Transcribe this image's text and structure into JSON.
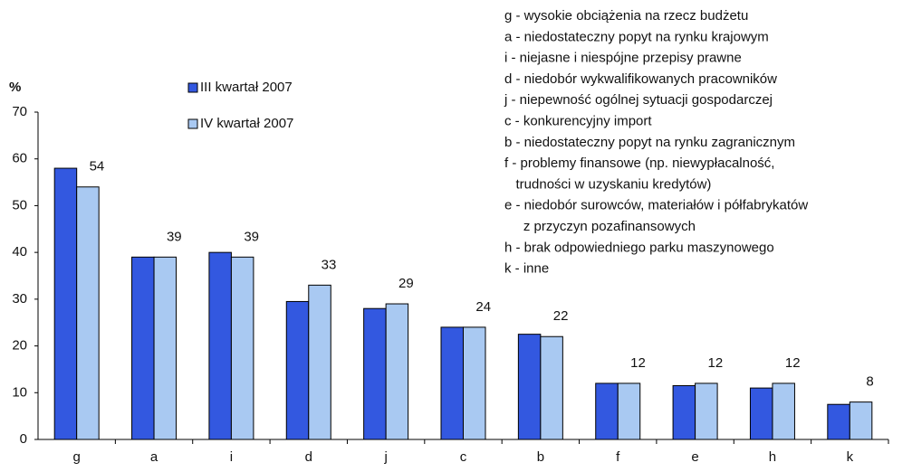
{
  "chart_data": {
    "type": "bar",
    "y_label": "%",
    "categories": [
      "g",
      "a",
      "i",
      "d",
      "j",
      "c",
      "b",
      "f",
      "e",
      "h",
      "k"
    ],
    "series": [
      {
        "name": "III kwartał 2007",
        "color": "#3358e0",
        "values": [
          58,
          39,
          40,
          29.5,
          28,
          24,
          22.5,
          12,
          11.5,
          11,
          7.5
        ]
      },
      {
        "name": "IV kwartał 2007",
        "color": "#a9c9f2",
        "values": [
          54,
          39,
          39,
          33,
          29,
          24,
          22,
          12,
          12,
          12,
          8
        ]
      }
    ],
    "ylim": [
      0,
      70
    ],
    "yticks": [
      0,
      10,
      20,
      30,
      40,
      50,
      60,
      70
    ],
    "notes": [
      "g - wysokie obciążenia na rzecz budżetu",
      "a - niedostateczny popyt na rynku krajowym",
      "i - niejasne i niespójne przepisy prawne",
      "d - niedobór wykwalifikowanych pracowników",
      "j - niepewność ogólnej sytuacji gospodarczej",
      "c - konkurencyjny import",
      "b - niedostateczny popyt na rynku zagranicznym",
      "f - problemy finansowe (np. niewypłacalność,",
      "   trudności w uzyskaniu kredytów)",
      "e - niedobór surowców, materiałów i półfabrykatów",
      "     z przyczyn pozafinansowych",
      "h - brak odpowiedniego parku maszynowego",
      "k - inne"
    ]
  }
}
